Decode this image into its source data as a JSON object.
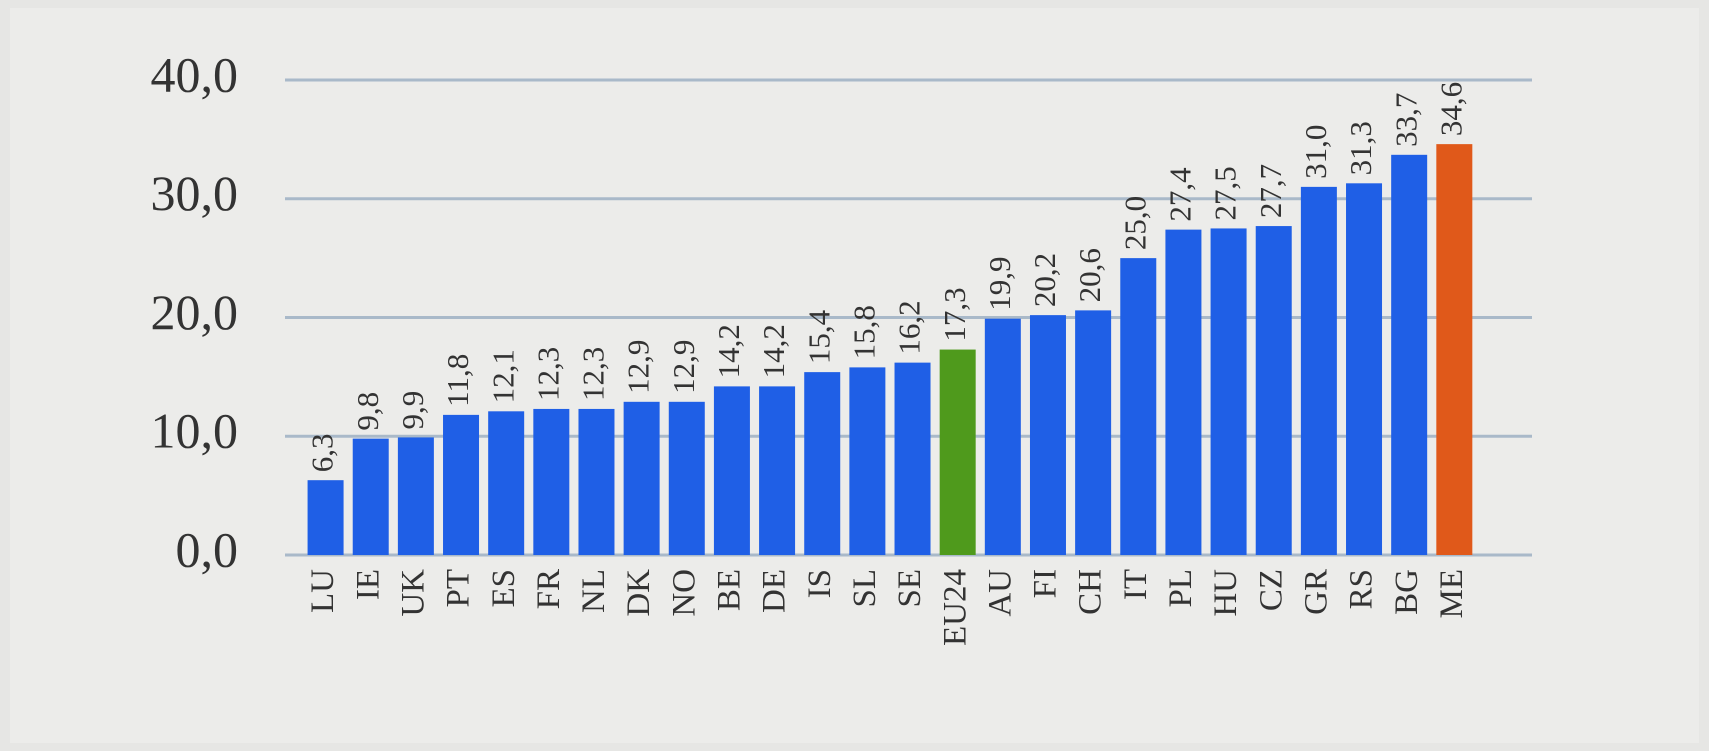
{
  "chart_data": {
    "type": "bar",
    "categories": [
      "LU",
      "IE",
      "UK",
      "PT",
      "ES",
      "FR",
      "NL",
      "DK",
      "NO",
      "BE",
      "DE",
      "IS",
      "SL",
      "SE",
      "EU24",
      "AU",
      "FI",
      "CH",
      "IT",
      "PL",
      "HU",
      "CZ",
      "GR",
      "RS",
      "BG",
      "ME"
    ],
    "values": [
      6.3,
      9.8,
      9.9,
      11.8,
      12.1,
      12.3,
      12.3,
      12.9,
      12.9,
      14.2,
      14.2,
      15.4,
      15.8,
      16.2,
      17.3,
      19.9,
      20.2,
      20.6,
      25.0,
      27.4,
      27.5,
      27.7,
      31.0,
      31.3,
      33.7,
      34.6
    ],
    "value_labels": [
      "6,3",
      "9,8",
      "9,9",
      "11,8",
      "12,1",
      "12,3",
      "12,3",
      "12,9",
      "12,9",
      "14,2",
      "14,2",
      "15,4",
      "15,8",
      "16,2",
      "17,3",
      "19,9",
      "20,2",
      "20,6",
      "25,0",
      "27,4",
      "27,5",
      "27,7",
      "31,0",
      "31,3",
      "33,7",
      "34,6"
    ],
    "colors": [
      "#1f5fe6",
      "#1f5fe6",
      "#1f5fe6",
      "#1f5fe6",
      "#1f5fe6",
      "#1f5fe6",
      "#1f5fe6",
      "#1f5fe6",
      "#1f5fe6",
      "#1f5fe6",
      "#1f5fe6",
      "#1f5fe6",
      "#1f5fe6",
      "#1f5fe6",
      "#4f9a1c",
      "#1f5fe6",
      "#1f5fe6",
      "#1f5fe6",
      "#1f5fe6",
      "#1f5fe6",
      "#1f5fe6",
      "#1f5fe6",
      "#1f5fe6",
      "#1f5fe6",
      "#1f5fe6",
      "#e0591a"
    ],
    "ylim": [
      0,
      40
    ],
    "yticks": [
      {
        "value": 0,
        "label": "0,0"
      },
      {
        "value": 10,
        "label": "10,0"
      },
      {
        "value": 20,
        "label": "20,0"
      },
      {
        "value": 30,
        "label": "30,0"
      },
      {
        "value": 40,
        "label": "40,0"
      }
    ],
    "grid": true
  }
}
